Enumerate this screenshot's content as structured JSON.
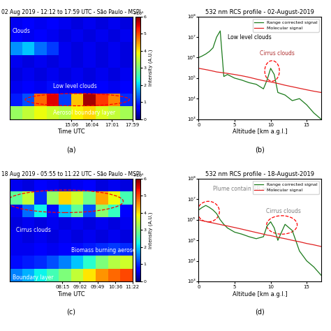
{
  "chart_data": [
    {
      "type": "heatmap",
      "title": "02 Aug 2019 - 12:12 to 17:59 UTC - São Paulo - MSPI",
      "panel_label": "(a)",
      "x_label": "Time UTC",
      "xlim": [
        12.2,
        17.983
      ],
      "xticks": [
        {
          "value": 15.1,
          "label": "15:06"
        },
        {
          "value": 16.067,
          "label": "16:04"
        },
        {
          "value": 17.017,
          "label": "17:01"
        },
        {
          "value": 17.983,
          "label": "17:59"
        }
      ],
      "ylim": [
        0,
        15
      ],
      "tick_labels": "x",
      "cells": [
        [
          3.2,
          3.5,
          3.8,
          3.6,
          3.4,
          3.9,
          4.1,
          3.7,
          3.5,
          3.3
        ],
        [
          0.9,
          1.2,
          4.8,
          5.5,
          1.1,
          4.2,
          5.8,
          5.1,
          4.6,
          1.0
        ],
        [
          0.6,
          0.7,
          0.6,
          0.8,
          0.6,
          0.7,
          0.6,
          0.7,
          0.6,
          0.7
        ],
        [
          0.5,
          0.6,
          0.5,
          0.6,
          0.5,
          0.6,
          0.5,
          0.6,
          0.5,
          0.6
        ],
        [
          0.6,
          0.5,
          0.6,
          0.5,
          0.6,
          0.5,
          0.6,
          0.5,
          0.6,
          0.5
        ],
        [
          1.6,
          1.9,
          1.4,
          1.1,
          0.6,
          0.5,
          0.6,
          0.5,
          0.6,
          0.5
        ],
        [
          0.7,
          0.6,
          0.7,
          0.6,
          0.5,
          0.6,
          0.5,
          0.6,
          0.5,
          0.6
        ],
        [
          0.6,
          0.7,
          0.6,
          0.7,
          0.6,
          0.5,
          0.6,
          0.5,
          0.6,
          0.5
        ]
      ],
      "clim": [
        0,
        6
      ],
      "cticks": [
        0,
        1,
        2,
        3,
        4,
        5,
        6
      ],
      "colorbar_label": "Intensity (A.U.)",
      "colorbar_title": "×10⁶",
      "annotations": [
        "Clouds",
        "Low level clouds",
        "Aerosol boundary layer"
      ]
    },
    {
      "type": "line",
      "title": "532 nm RCS profile - 02-August-2019",
      "panel_label": "(b)",
      "x_label": "Altitude [km a.g.l.]",
      "x": [
        0,
        0.5,
        1,
        1.5,
        2,
        2.5,
        3,
        3.5,
        4,
        5,
        6,
        7,
        8,
        9,
        9.5,
        10,
        10.5,
        11,
        12,
        13,
        14,
        15,
        16,
        17
      ],
      "series": [
        {
          "name": "Range corrected signal",
          "color": "#1a7a1a",
          "values": [
            1000000,
            1200000,
            1500000,
            2000000,
            3000000,
            10000000,
            20000000,
            120000,
            150000,
            100000,
            80000,
            60000,
            50000,
            30000,
            80000,
            300000,
            150000,
            20000,
            15000,
            8000,
            10000,
            5000,
            2000,
            1000
          ]
        },
        {
          "name": "Molecular signal",
          "color": "#e02020",
          "values": [
            300000,
            280000,
            260000,
            240000,
            220000,
            200000,
            190000,
            180000,
            170000,
            150000,
            130000,
            110000,
            90000,
            75000,
            70000,
            65000,
            60000,
            55000,
            45000,
            38000,
            32000,
            27000,
            23000,
            20000
          ]
        }
      ],
      "xlim": [
        0,
        17
      ],
      "xticks": [
        0,
        5,
        10,
        15
      ],
      "ylim": [
        1000,
        100000000
      ],
      "yticks": [
        {
          "value": 1000,
          "label": "10³"
        },
        {
          "value": 10000,
          "label": "10⁴"
        },
        {
          "value": 100000,
          "label": "10⁵"
        },
        {
          "value": 1000000,
          "label": "10⁶"
        },
        {
          "value": 10000000,
          "label": "10⁷"
        },
        {
          "value": 100000000,
          "label": "10⁸"
        }
      ],
      "log": "y",
      "legend": "upper right",
      "annotations": [
        "Low level clouds",
        "Cirrus clouds"
      ]
    },
    {
      "type": "heatmap",
      "title": "18 Aug 2019 - 05:55 to 11:22 UTC - São Paulo - MSPI",
      "panel_label": "(c)",
      "x_label": "Time UTC",
      "xlim": [
        5.917,
        11.367
      ],
      "xticks": [
        {
          "value": 8.25,
          "label": "08:15"
        },
        {
          "value": 9.033,
          "label": "09:02"
        },
        {
          "value": 9.817,
          "label": "09:49"
        },
        {
          "value": 10.6,
          "label": "10:36"
        },
        {
          "value": 11.367,
          "label": "11:22"
        }
      ],
      "ylim": [
        0,
        15
      ],
      "tick_labels": "x",
      "cells": [
        [
          1.5,
          1.8,
          2.2,
          2.6,
          3.0,
          3.5,
          4.0,
          4.5,
          4.8,
          5.0
        ],
        [
          0.8,
          0.9,
          1.0,
          1.2,
          1.5,
          1.9,
          2.4,
          3.0,
          3.4,
          3.6
        ],
        [
          0.6,
          0.6,
          0.7,
          0.6,
          0.7,
          0.8,
          0.9,
          1.0,
          1.1,
          1.0
        ],
        [
          0.6,
          0.5,
          0.6,
          0.5,
          0.6,
          0.5,
          0.6,
          0.5,
          0.6,
          0.5
        ],
        [
          0.5,
          0.6,
          0.5,
          0.6,
          0.5,
          0.6,
          0.5,
          0.6,
          0.5,
          0.6
        ],
        [
          0.6,
          1.4,
          2.2,
          0.8,
          1.9,
          2.8,
          1.2,
          3.1,
          2.5,
          0.7
        ],
        [
          2.8,
          3.5,
          1.0,
          3.2,
          4.1,
          3.6,
          2.9,
          4.4,
          3.8,
          2.6
        ],
        [
          0.6,
          0.5,
          0.7,
          0.6,
          0.5,
          0.6,
          0.7,
          0.5,
          0.6,
          0.5
        ]
      ],
      "clim": [
        0,
        6
      ],
      "cticks": [
        0,
        1,
        2,
        3,
        4,
        5,
        6
      ],
      "colorbar_label": "Intensity (A.U.)",
      "colorbar_title": "×10⁶",
      "annotations": [
        "Cirrus clouds",
        "Biomass burning aerosol",
        "Boundary layer"
      ]
    },
    {
      "type": "line",
      "title": "532 nm RCS profile - 18-August-2019",
      "panel_label": "(d)",
      "x_label": "Altitude [km a.g.l.]",
      "x": [
        0,
        0.5,
        1,
        1.5,
        2,
        2.5,
        3,
        3.5,
        4,
        5,
        6,
        7,
        8,
        9,
        9.5,
        10,
        10.5,
        11,
        12,
        13,
        14,
        15,
        16,
        17
      ],
      "series": [
        {
          "name": "Range corrected signal",
          "color": "#1a7a1a",
          "values": [
            3000000,
            4000000,
            5000000,
            4000000,
            3000000,
            2000000,
            1000000,
            600000,
            400000,
            250000,
            200000,
            150000,
            120000,
            150000,
            500000,
            800000,
            400000,
            100000,
            600000,
            300000,
            30000,
            10000,
            5000,
            2000
          ]
        },
        {
          "name": "Molecular signal",
          "color": "#e02020",
          "values": [
            1000000,
            900000,
            830000,
            760000,
            700000,
            640000,
            590000,
            540000,
            500000,
            420000,
            350000,
            290000,
            240000,
            200000,
            180000,
            170000,
            155000,
            140000,
            120000,
            100000,
            85000,
            70000,
            60000,
            50000
          ]
        }
      ],
      "xlim": [
        0,
        17
      ],
      "xticks": [
        0,
        5,
        10,
        15
      ],
      "ylim": [
        1000,
        100000000
      ],
      "yticks": [
        {
          "value": 1000,
          "label": "10³"
        },
        {
          "value": 10000,
          "label": "10⁴"
        },
        {
          "value": 100000,
          "label": "10⁵"
        },
        {
          "value": 1000000,
          "label": "10⁶"
        },
        {
          "value": 10000000,
          "label": "10⁷"
        },
        {
          "value": 100000000,
          "label": "10⁸"
        }
      ],
      "log": "y",
      "legend": "upper right",
      "annotations": [
        "Plume contain BB aerosol",
        "Cirrus clouds"
      ]
    }
  ]
}
